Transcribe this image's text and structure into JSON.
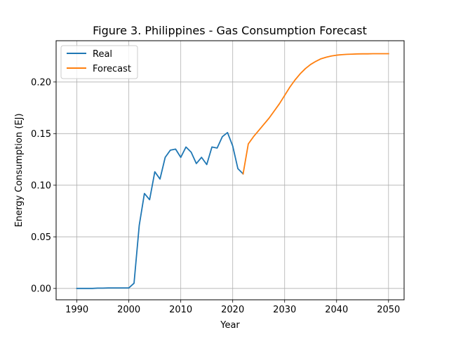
{
  "chart_data": {
    "type": "line",
    "title": "Figure 3. Philippines - Gas Consumption Forecast",
    "xlabel": "Year",
    "ylabel": "Energy Consumption (EJ)",
    "xlim": [
      1986,
      2053
    ],
    "ylim": [
      -0.011,
      0.24
    ],
    "xticks": [
      1990,
      2000,
      2010,
      2020,
      2030,
      2040,
      2050
    ],
    "xtick_labels": [
      "1990",
      "2000",
      "2010",
      "2020",
      "2030",
      "2040",
      "2050"
    ],
    "yticks": [
      0.0,
      0.05,
      0.1,
      0.15,
      0.2
    ],
    "ytick_labels": [
      "0.00",
      "0.05",
      "0.10",
      "0.15",
      "0.20"
    ],
    "grid": true,
    "legend_position": "top-left",
    "series": [
      {
        "name": "Real",
        "color": "#1f77b4",
        "x": [
          1990,
          1991,
          1992,
          1993,
          1994,
          1995,
          1996,
          1997,
          1998,
          1999,
          2000,
          2001,
          2002,
          2003,
          2004,
          2005,
          2006,
          2007,
          2008,
          2009,
          2010,
          2011,
          2012,
          2013,
          2014,
          2015,
          2016,
          2017,
          2018,
          2019,
          2020,
          2021,
          2022
        ],
        "values": [
          0.0,
          0.0,
          0.0,
          0.0,
          0.0003,
          0.0003,
          0.0005,
          0.0005,
          0.0005,
          0.0005,
          0.0005,
          0.005,
          0.061,
          0.092,
          0.086,
          0.113,
          0.106,
          0.127,
          0.134,
          0.135,
          0.127,
          0.137,
          0.132,
          0.121,
          0.127,
          0.12,
          0.137,
          0.136,
          0.147,
          0.151,
          0.138,
          0.116,
          0.111
        ]
      },
      {
        "name": "Forecast",
        "color": "#ff7f0e",
        "x": [
          2022,
          2023,
          2024,
          2025,
          2026,
          2027,
          2028,
          2029,
          2030,
          2031,
          2032,
          2033,
          2034,
          2035,
          2036,
          2037,
          2038,
          2039,
          2040,
          2041,
          2042,
          2043,
          2044,
          2045,
          2046,
          2047,
          2048,
          2049,
          2050
        ],
        "values": [
          0.111,
          0.14,
          0.147,
          0.153,
          0.159,
          0.165,
          0.172,
          0.179,
          0.187,
          0.195,
          0.202,
          0.208,
          0.213,
          0.217,
          0.22,
          0.2225,
          0.224,
          0.2252,
          0.226,
          0.2265,
          0.2268,
          0.227,
          0.2272,
          0.2273,
          0.2273,
          0.2274,
          0.2274,
          0.2274,
          0.2274
        ]
      }
    ]
  }
}
